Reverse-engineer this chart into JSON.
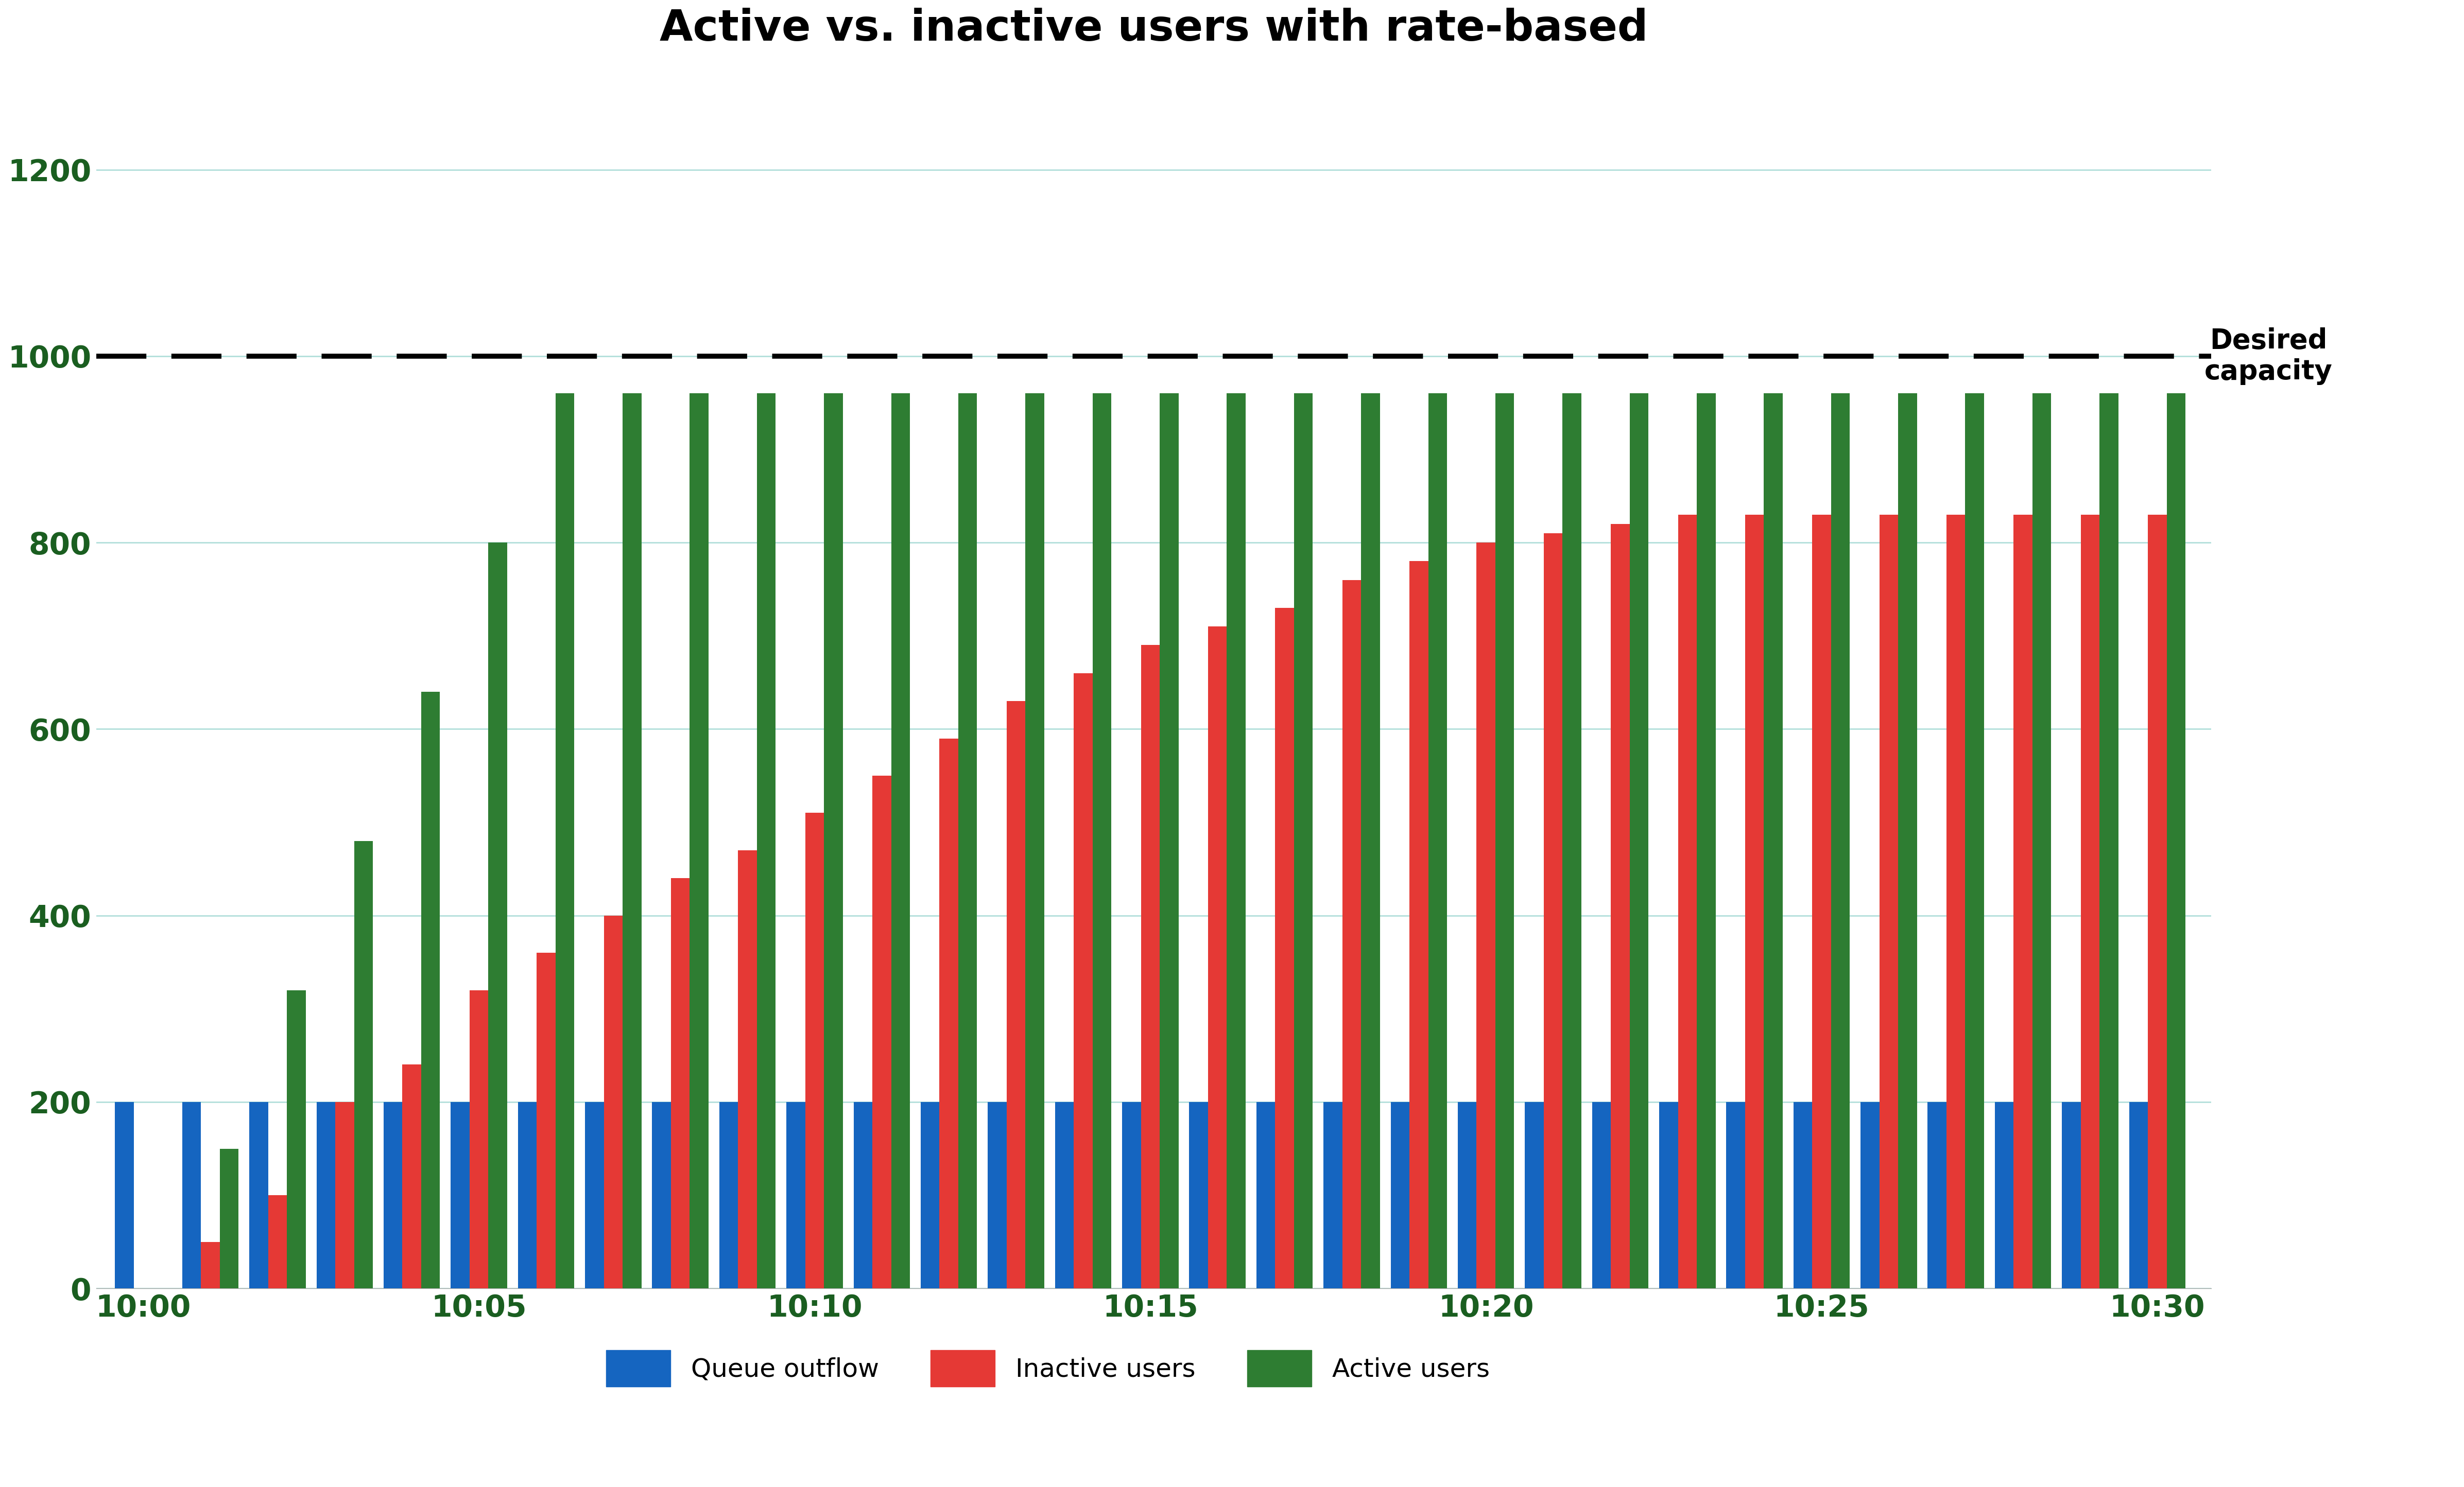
{
  "title": "Active vs. inactive users with rate-based",
  "title_fontsize": 60,
  "title_fontweight": "bold",
  "title_color": "#000000",
  "background_color": "#ffffff",
  "tick_label_color": "#1a5e20",
  "tick_fontsize": 42,
  "ylim": [
    0,
    1300
  ],
  "yticks": [
    0,
    200,
    400,
    600,
    800,
    1000,
    1200
  ],
  "desired_capacity": 1000,
  "desired_label": "Desired\ncapacity",
  "grid_color": "#b2dfdb",
  "bar_colors": {
    "queue_outflow": "#1565c0",
    "inactive_users": "#e53935",
    "active_users": "#2e7d32"
  },
  "legend_labels": [
    "Queue outflow",
    "Inactive users",
    "Active users"
  ],
  "legend_colors": [
    "#1565c0",
    "#e53935",
    "#2e7d32"
  ],
  "legend_fontsize": 36,
  "x_tick_labels": [
    "10:00",
    "10:05",
    "10:10",
    "10:15",
    "10:20",
    "10:25",
    "10:30"
  ],
  "queue_outflow": [
    200,
    200,
    200,
    200,
    200,
    200,
    200,
    200,
    200,
    200,
    200,
    200,
    200,
    200,
    200,
    200,
    200,
    200,
    200,
    200,
    200,
    200,
    200,
    200,
    200,
    200,
    200,
    200,
    200,
    200,
    200
  ],
  "inactive_users": [
    0,
    50,
    100,
    200,
    240,
    320,
    360,
    400,
    440,
    470,
    510,
    550,
    590,
    630,
    660,
    690,
    710,
    730,
    760,
    780,
    800,
    810,
    820,
    830,
    830,
    830,
    830,
    830,
    830,
    830,
    830
  ],
  "active_users": [
    0,
    150,
    320,
    480,
    640,
    800,
    960,
    960,
    960,
    960,
    960,
    960,
    960,
    960,
    960,
    960,
    960,
    960,
    960,
    960,
    960,
    960,
    960,
    960,
    960,
    960,
    960,
    960,
    960,
    960,
    960
  ]
}
